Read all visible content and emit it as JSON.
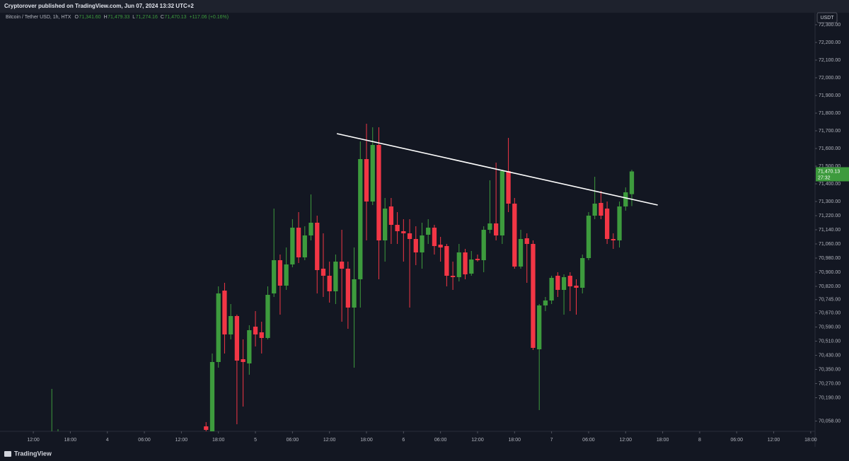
{
  "header": {
    "publisher": "Cryptorover published on TradingView.com, Jun 07, 2024 13:32 UTC+2"
  },
  "footer": {
    "brand": "TradingView"
  },
  "chart_data": {
    "type": "candlestick",
    "title": "Bitcoin / Tether USD, 1h, HTX",
    "legend_values": [
      {
        "label": "O",
        "value": "71,341.60"
      },
      {
        "label": "H",
        "value": "71,479.33"
      },
      {
        "label": "L",
        "value": "71,274.16"
      },
      {
        "label": "C",
        "value": "71,470.13"
      }
    ],
    "change": "+117.06 (+0.16%)",
    "currency": "USDT",
    "last_price": 71470.13,
    "last_price_label": "71,470.13",
    "countdown": "27:32",
    "up_color": "#3d9b3d",
    "down_color": "#f23645",
    "x": [
      3,
      4,
      28,
      29,
      30,
      31,
      32,
      33,
      34,
      35,
      36,
      37,
      38,
      39,
      40,
      41,
      42,
      43,
      44,
      45,
      46,
      47,
      48,
      49,
      50,
      51,
      52,
      53,
      54,
      55,
      56,
      57,
      58,
      59,
      60,
      61,
      62,
      63,
      64,
      65,
      66,
      67,
      68,
      69,
      70,
      71,
      72,
      73,
      74,
      75,
      76,
      77,
      78,
      79,
      80,
      81,
      82,
      83,
      84,
      85,
      86,
      87,
      88,
      89,
      90,
      91,
      92,
      93,
      94,
      95,
      96,
      97
    ],
    "open": [
      69992,
      69992,
      70028,
      69992,
      70392,
      70796,
      70548,
      70652,
      70408,
      70384,
      70592,
      70560,
      70528,
      70780,
      70968,
      70824,
      70944,
      71152,
      70984,
      71108,
      71180,
      70920,
      70880,
      70792,
      70960,
      70920,
      70700,
      70860,
      71540,
      71300,
      71620,
      71080,
      71272,
      71168,
      71132,
      71120,
      71088,
      71012,
      71112,
      71152,
      71056,
      71048,
      70880,
      70872,
      71012,
      70892,
      70976,
      70968,
      71140,
      71176,
      71108,
      71472,
      71288,
      70932,
      71092,
      71060,
      70464,
      70712,
      70740,
      70880,
      70800,
      70880,
      70824,
      70812,
      70980,
      71220,
      71292,
      71260,
      71088,
      71080,
      71272,
      71341.6
    ],
    "high": [
      70240,
      70012,
      70052,
      70440,
      70820,
      70840,
      70720,
      70660,
      70520,
      70600,
      70680,
      70620,
      70820,
      71260,
      71000,
      71040,
      71200,
      71240,
      71160,
      71340,
      71220,
      71120,
      70960,
      71000,
      71140,
      70960,
      71040,
      71640,
      71740,
      71720,
      71720,
      71320,
      71320,
      71240,
      71200,
      71200,
      71160,
      71180,
      71200,
      71168,
      71100,
      71060,
      70960,
      71060,
      71032,
      71020,
      71000,
      71160,
      71420,
      71520,
      71480,
      71660,
      71320,
      71140,
      71120,
      71080,
      70720,
      70760,
      70880,
      70900,
      70888,
      70900,
      70860,
      71000,
      71240,
      71440,
      71360,
      71300,
      71120,
      71300,
      71380,
      71479.33
    ],
    "low": [
      69980,
      69980,
      69980,
      69980,
      70360,
      70440,
      70520,
      70040,
      70140,
      70320,
      70480,
      70440,
      70520,
      70760,
      70660,
      70800,
      70928,
      70952,
      70968,
      71080,
      70780,
      70760,
      70728,
      70720,
      70620,
      70580,
      70360,
      70700,
      71080,
      71280,
      70860,
      70960,
      71060,
      71060,
      70960,
      70700,
      70940,
      70920,
      71060,
      71000,
      70960,
      70820,
      70800,
      70848,
      70860,
      70880,
      70960,
      70900,
      71120,
      71080,
      71060,
      71240,
      70920,
      70920,
      70840,
      70460,
      70120,
      70680,
      70720,
      70760,
      70660,
      70680,
      70660,
      70780,
      70968,
      71200,
      71200,
      71060,
      71032,
      71040,
      71248,
      71274.16
    ],
    "close": [
      70000,
      69996,
      70008,
      70392,
      70780,
      70548,
      70652,
      70400,
      70392,
      70572,
      70548,
      70528,
      70772,
      70968,
      70824,
      70944,
      71152,
      70984,
      71108,
      71180,
      70912,
      70880,
      70792,
      70960,
      70920,
      70700,
      70860,
      71540,
      71300,
      71620,
      71080,
      71260,
      71168,
      71132,
      71120,
      71088,
      71012,
      71108,
      71152,
      71048,
      71040,
      70880,
      70872,
      71012,
      70888,
      70972,
      70968,
      71140,
      71176,
      71108,
      71472,
      71288,
      70932,
      71088,
      71060,
      70472,
      70712,
      70740,
      70868,
      70800,
      70872,
      70820,
      70812,
      70980,
      71220,
      71288,
      71220,
      71088,
      71080,
      71272,
      71352,
      71470.13
    ],
    "trendline": {
      "x": [
        49.2,
        101.2
      ],
      "y": [
        71684,
        71280
      ],
      "color": "#ffffff"
    },
    "xlim": [
      -5.4,
      126.7
    ],
    "ylim": [
      70000,
      72368
    ],
    "yticks": [
      {
        "value": 72300,
        "label": "72,300.00"
      },
      {
        "value": 72200,
        "label": "72,200.00"
      },
      {
        "value": 72100,
        "label": "72,100.00"
      },
      {
        "value": 72000,
        "label": "72,000.00"
      },
      {
        "value": 71900,
        "label": "71,900.00"
      },
      {
        "value": 71800,
        "label": "71,800.00"
      },
      {
        "value": 71700,
        "label": "71,700.00"
      },
      {
        "value": 71600,
        "label": "71,600.00"
      },
      {
        "value": 71500,
        "label": "71,500.00"
      },
      {
        "value": 71400,
        "label": "71,400.00"
      },
      {
        "value": 71300,
        "label": "71,300.00"
      },
      {
        "value": 71220,
        "label": "71,220.00"
      },
      {
        "value": 71140,
        "label": "71,140.00"
      },
      {
        "value": 71060,
        "label": "71,060.00"
      },
      {
        "value": 70980,
        "label": "70,980.00"
      },
      {
        "value": 70900,
        "label": "70,900.00"
      },
      {
        "value": 70820,
        "label": "70,820.00"
      },
      {
        "value": 70745,
        "label": "70,745.00"
      },
      {
        "value": 70670,
        "label": "70,670.00"
      },
      {
        "value": 70590,
        "label": "70,590.00"
      },
      {
        "value": 70510,
        "label": "70,510.00"
      },
      {
        "value": 70430,
        "label": "70,430.00"
      },
      {
        "value": 70350,
        "label": "70,350.00"
      },
      {
        "value": 70270,
        "label": "70,270.00"
      },
      {
        "value": 70190,
        "label": "70,190.00"
      },
      {
        "value": 70058,
        "label": "70,058.00"
      }
    ],
    "xticks": [
      {
        "value": 0,
        "label": "12:00"
      },
      {
        "value": 6,
        "label": "18:00"
      },
      {
        "value": 12,
        "label": "4"
      },
      {
        "value": 18,
        "label": "06:00"
      },
      {
        "value": 24,
        "label": "12:00"
      },
      {
        "value": 30,
        "label": "18:00"
      },
      {
        "value": 36,
        "label": "5"
      },
      {
        "value": 42,
        "label": "06:00"
      },
      {
        "value": 48,
        "label": "12:00"
      },
      {
        "value": 54,
        "label": "18:00"
      },
      {
        "value": 60,
        "label": "6"
      },
      {
        "value": 66,
        "label": "06:00"
      },
      {
        "value": 72,
        "label": "12:00"
      },
      {
        "value": 78,
        "label": "18:00"
      },
      {
        "value": 84,
        "label": "7"
      },
      {
        "value": 90,
        "label": "06:00"
      },
      {
        "value": 96,
        "label": "12:00"
      },
      {
        "value": 102,
        "label": "18:00"
      },
      {
        "value": 108,
        "label": "8"
      },
      {
        "value": 114,
        "label": "06:00"
      },
      {
        "value": 120,
        "label": "12:00"
      },
      {
        "value": 126,
        "label": "18:00"
      }
    ],
    "grid": false
  }
}
